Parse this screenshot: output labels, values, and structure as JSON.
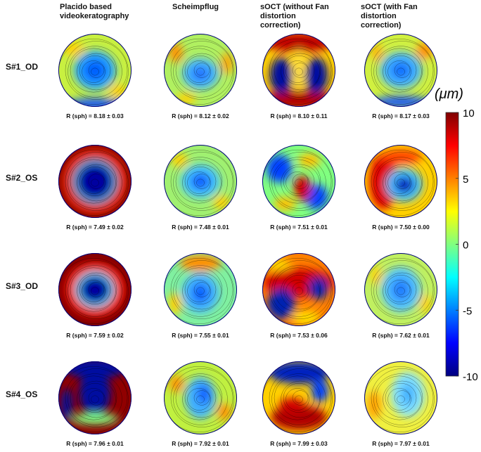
{
  "columns": [
    "Placido based videokeratography",
    "Scheimpflug",
    "sOCT (without Fan distortion correction)",
    "sOCT (with Fan distortion correction)"
  ],
  "rows": [
    {
      "label": "S#1_OD",
      "captions": [
        "R (sph) = 8.18 ± 0.03",
        "R (sph) = 8.12 ± 0.02",
        "R (sph) = 8.10 ± 0.11",
        "R (sph) = 8.17 ± 0.03"
      ]
    },
    {
      "label": "S#2_OS",
      "captions": [
        "R (sph) = 7.49 ± 0.02",
        "R (sph) = 7.48 ± 0.01",
        "R (sph) = 7.51 ± 0.01",
        "R (sph) = 7.50 ± 0.00"
      ]
    },
    {
      "label": "S#3_OD",
      "captions": [
        "R (sph) = 7.59 ± 0.02",
        "R (sph) = 7.55 ± 0.01",
        "R (sph) = 7.53 ± 0.06",
        "R (sph) = 7.62 ± 0.01"
      ]
    },
    {
      "label": "S#4_OS",
      "captions": [
        "R (sph) = 7.96 ± 0.01",
        "R (sph) = 7.92 ± 0.01",
        "R (sph) = 7.99 ± 0.03",
        "R (sph) = 7.97 ± 0.01"
      ]
    }
  ],
  "colorbar": {
    "unit": "(μm)",
    "range": [
      -10,
      10
    ],
    "ticks": [
      10,
      5,
      0,
      -5,
      -10
    ]
  }
}
